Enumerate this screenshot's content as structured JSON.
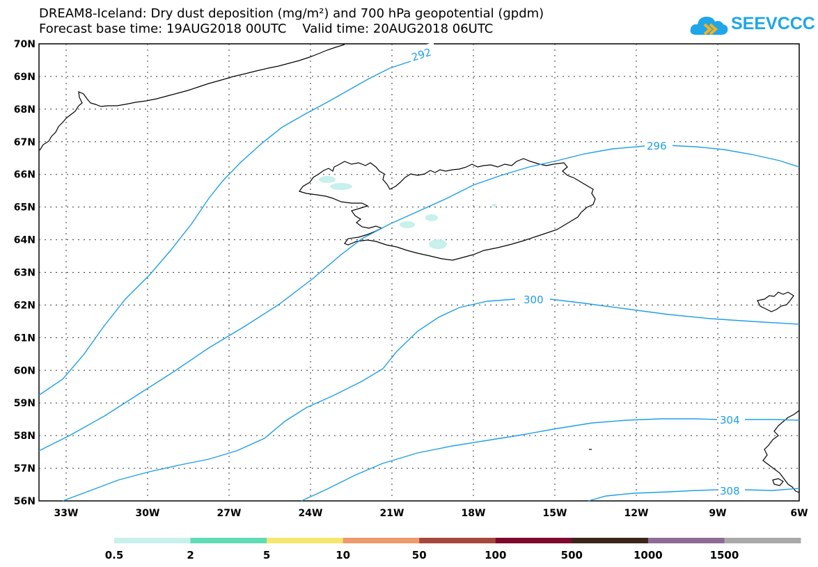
{
  "title": {
    "line1": "DREAM8-Iceland: Dry dust deposition (mg/m²) and 700 hPa geopotential (gpdm)",
    "line2": "Forecast base time: 19AUG2018 00UTC    Valid time: 20AUG2018 06UTC"
  },
  "logo": {
    "text": "SEEVCCC",
    "icon": "cloud-logo-icon",
    "color": "#1ea6e8"
  },
  "map": {
    "lon_range": [
      -34,
      -6
    ],
    "lat_range": [
      56,
      70
    ],
    "lat_ticks": [
      "70N",
      "69N",
      "68N",
      "67N",
      "66N",
      "65N",
      "64N",
      "63N",
      "62N",
      "61N",
      "60N",
      "59N",
      "58N",
      "57N",
      "56N"
    ],
    "lon_ticks": [
      "33W",
      "30W",
      "27W",
      "24W",
      "21W",
      "18W",
      "15W",
      "12W",
      "9W",
      "6W"
    ],
    "contour_color": "#1e9fe6",
    "contour_labels": [
      "292",
      "296",
      "300",
      "304",
      "308"
    ]
  },
  "colorbar": {
    "labels": [
      "0.5",
      "2",
      "5",
      "10",
      "50",
      "100",
      "500",
      "1000",
      "1500"
    ],
    "colors": [
      "#c8f0ec",
      "#5fdcb4",
      "#f5e66e",
      "#ee9a6a",
      "#a6473c",
      "#7d0a2c",
      "#3a2619",
      "#8d6b95",
      "#a9a9a9"
    ]
  }
}
